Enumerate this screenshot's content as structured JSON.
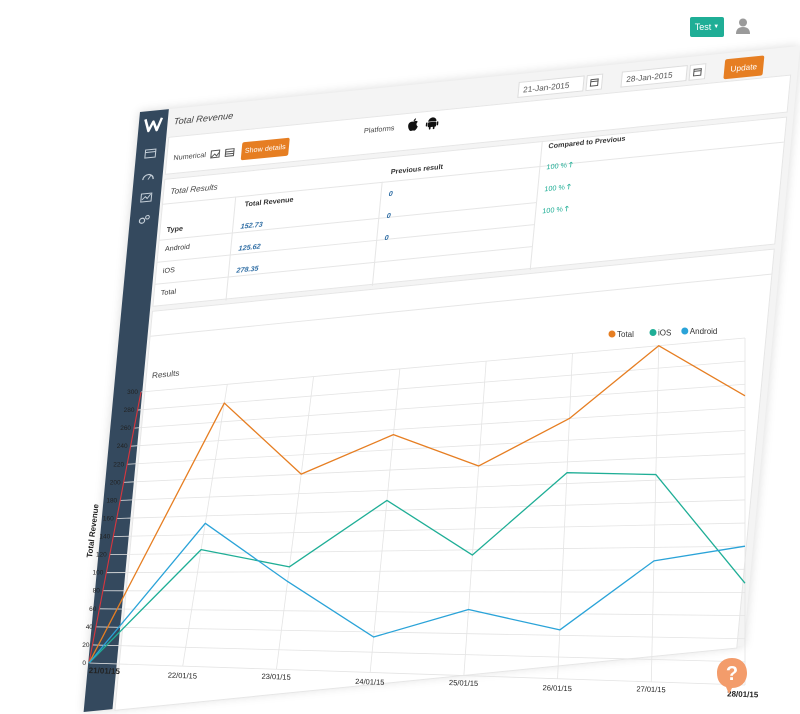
{
  "header": {
    "test_button": "Test",
    "user_icon": "user-icon"
  },
  "toolbar": {
    "title": "Total Revenue",
    "date_from": "21-Jan-2015",
    "date_to": "28-Jan-2015",
    "update_label": "Update"
  },
  "filters": {
    "numerical_label": "Numerical",
    "show_details_label": "Show details",
    "platforms_label": "Platforms"
  },
  "total_results": {
    "title": "Total Results",
    "headers": [
      "Type",
      "Total Revenue",
      "Previous result",
      "Compared to Previous"
    ],
    "rows": [
      {
        "type": "Android",
        "revenue": "152.73",
        "previous": "0",
        "compared": "100 %"
      },
      {
        "type": "iOS",
        "revenue": "125.62",
        "previous": "0",
        "compared": "100 %"
      },
      {
        "type": "Total",
        "revenue": "278.35",
        "previous": "0",
        "compared": "100 %"
      }
    ]
  },
  "results": {
    "title": "Results"
  },
  "colors": {
    "total": "#e67e22",
    "ios": "#1fae96",
    "android": "#2aa3d8",
    "sidebar": "#34495e",
    "accent": "#1fae96"
  },
  "chart_data": {
    "type": "line",
    "x": [
      "21/01/15",
      "22/01/15",
      "23/01/15",
      "24/01/15",
      "25/01/15",
      "26/01/15",
      "27/01/15",
      "28/01/15"
    ],
    "series": [
      {
        "name": "Total",
        "values": [
          0,
          280,
          200,
          235,
          200,
          240,
          300,
          250
        ]
      },
      {
        "name": "iOS",
        "values": [
          0,
          124,
          105,
          170,
          115,
          190,
          185,
          88
        ]
      },
      {
        "name": "Android",
        "values": [
          0,
          152,
          90,
          35,
          63,
          45,
          108,
          120
        ]
      }
    ],
    "ylabel": "Total Revenue",
    "yticks": [
      0,
      20,
      40,
      60,
      80,
      100,
      120,
      140,
      160,
      180,
      200,
      220,
      240,
      260,
      280,
      300
    ],
    "ylim": [
      0,
      300
    ],
    "grid": true,
    "legend": "top-right"
  }
}
